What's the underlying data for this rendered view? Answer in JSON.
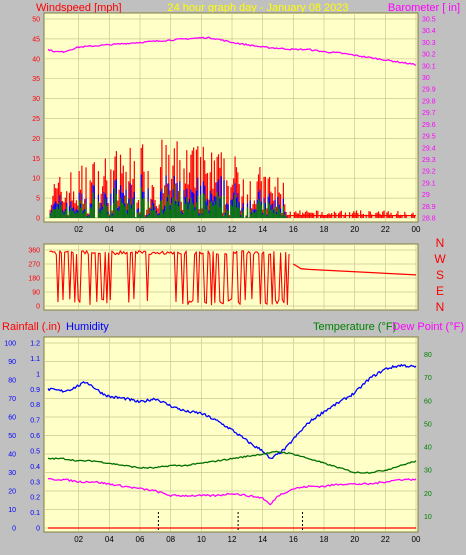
{
  "colors": {
    "background": "#c0c0c0",
    "plot": "#ffffc8",
    "grid": "#c8c890",
    "wind_speed": "#ff0000",
    "wind_gust": "#0000ff",
    "wind_avg": "#008000",
    "barometer": "#ff00ff",
    "direction": "#ff0000",
    "humidity": "#0000ff",
    "temperature": "#007000",
    "dewpoint": "#ff00ff",
    "rainfall": "#ff0000",
    "rain_marks": "#000000",
    "axis_red": "#ff0000",
    "axis_green": "#008000",
    "axis_blue": "#0000ff",
    "axis_magenta": "#ff00ff",
    "title": "#ffff00"
  },
  "header": {
    "windspeed_label": "Windspeed [mph]",
    "title": "24 hour graph day - January 08 2023",
    "barometer_label": "Barometer [ in]"
  },
  "panel_middle": {
    "compass": [
      "N",
      "W",
      "S",
      "E",
      "N"
    ]
  },
  "panel_bottom": {
    "rainfall_label": "Rainfall (.in)",
    "humidity_label": "Humidity",
    "temperature_label": "Temperature (°F)",
    "dewpoint_label": "Dew Point (°F)"
  },
  "chart_data": [
    {
      "type": "line",
      "name": "wind-barometer",
      "x_ticks": [
        "02",
        "04",
        "06",
        "08",
        "10",
        "12",
        "14",
        "16",
        "18",
        "20",
        "22",
        "00"
      ],
      "x_unit": "hour",
      "xlim": [
        0,
        24
      ],
      "y_left": {
        "label": "Windspeed [mph]",
        "ticks": [
          0,
          5,
          10,
          15,
          20,
          25,
          30,
          35,
          40,
          45,
          50
        ],
        "ylim": [
          0,
          50
        ]
      },
      "y_right": {
        "label": "Barometer [ in]",
        "ticks": [
          28.8,
          28.9,
          29.0,
          29.1,
          29.2,
          29.3,
          29.4,
          29.5,
          29.6,
          29.7,
          29.8,
          29.9,
          30.0,
          30.1,
          30.2,
          30.3,
          30.4,
          30.5
        ],
        "ylim": [
          28.8,
          30.5
        ]
      },
      "series": [
        {
          "name": "Barometer [ in]",
          "axis": "right",
          "x": [
            0,
            0.5,
            1,
            1.5,
            2,
            3,
            4,
            5,
            6,
            7,
            8,
            9,
            10,
            10.5,
            11,
            12,
            13,
            14,
            15,
            16,
            17,
            18,
            19,
            20,
            21,
            22,
            23,
            24
          ],
          "y": [
            30.24,
            30.22,
            30.22,
            30.24,
            30.26,
            30.27,
            30.28,
            30.29,
            30.3,
            30.31,
            30.32,
            30.33,
            30.34,
            30.34,
            30.33,
            30.3,
            30.28,
            30.26,
            30.25,
            30.24,
            30.24,
            30.22,
            30.21,
            30.19,
            30.17,
            30.15,
            30.13,
            30.11
          ]
        }
      ]
    },
    {
      "type": "line",
      "name": "wind-direction",
      "xlim": [
        0,
        24
      ],
      "y_left": {
        "ticks": [
          0,
          90,
          180,
          270,
          360
        ],
        "ylim": [
          0,
          360
        ]
      },
      "y_right": {
        "ticks": [
          "N",
          "W",
          "S",
          "E",
          "N"
        ]
      },
      "series": [
        {
          "name": "Direction",
          "x": [
            16,
            16.5,
            17,
            24
          ],
          "y": [
            270,
            240,
            235,
            200
          ]
        }
      ]
    },
    {
      "type": "line",
      "name": "rain-humidity-temperature",
      "x_ticks": [
        "02",
        "04",
        "06",
        "08",
        "10",
        "12",
        "14",
        "16",
        "18",
        "20",
        "22",
        "00"
      ],
      "xlim": [
        0,
        24
      ],
      "y_humidity": {
        "label": "Humidity",
        "ticks": [
          0,
          10,
          20,
          30,
          40,
          50,
          60,
          70,
          80,
          90,
          100
        ],
        "ylim": [
          0,
          100
        ]
      },
      "y_rainfall": {
        "label": "Rainfall (.in)",
        "ticks": [
          0,
          0.1,
          0.2,
          0.3,
          0.4,
          0.5,
          0.6,
          0.7,
          0.8,
          0.9,
          1,
          1.1,
          1.2
        ],
        "ylim": [
          0,
          1.2
        ]
      },
      "y_right": {
        "label": "Temperature (°F)",
        "ticks": [
          10,
          20,
          30,
          40,
          50,
          60,
          70,
          80
        ],
        "ylim": [
          5,
          85
        ]
      },
      "series": [
        {
          "name": "Humidity",
          "axis": "humidity",
          "x": [
            0,
            1,
            1.5,
            2,
            2.5,
            3,
            3.5,
            4,
            5,
            6,
            7,
            8,
            9,
            10,
            11,
            12,
            12.5,
            13,
            13.5,
            14,
            14.5,
            15,
            15.5,
            16,
            17,
            18,
            19,
            20,
            21,
            22,
            23,
            24
          ],
          "y": [
            75,
            74,
            75,
            77,
            79,
            76,
            73,
            71,
            70,
            68,
            70,
            66,
            63,
            62,
            58,
            53,
            50,
            47,
            44,
            42,
            37,
            40,
            43,
            48,
            57,
            63,
            68,
            73,
            81,
            86,
            88,
            87
          ]
        },
        {
          "name": "Temperature (°F)",
          "axis": "right",
          "x": [
            0,
            1,
            2,
            3,
            4,
            5,
            6,
            7,
            8,
            9,
            10,
            11,
            12,
            13,
            14,
            15,
            16,
            17,
            18,
            19,
            20,
            21,
            22,
            23,
            24
          ],
          "y": [
            35,
            35,
            34,
            34,
            33,
            32,
            31,
            31,
            32,
            32,
            33,
            34,
            35,
            36,
            37,
            38,
            37,
            35,
            33,
            31,
            29,
            29,
            30,
            32,
            34
          ]
        },
        {
          "name": "Dew Point (°F)",
          "axis": "right",
          "x": [
            0,
            1,
            2,
            3,
            4,
            5,
            6,
            7,
            8,
            9,
            10,
            11,
            12,
            13,
            14,
            14.5,
            15,
            16,
            17,
            18,
            19,
            20,
            21,
            22,
            23,
            24
          ],
          "y": [
            26,
            26,
            25,
            25,
            24,
            23,
            22,
            21,
            19,
            19,
            19,
            19,
            20,
            19,
            18,
            15,
            19,
            22,
            23,
            23,
            24,
            24,
            24,
            25,
            26,
            26
          ]
        },
        {
          "name": "Rainfall (.in)",
          "axis": "rainfall",
          "x": [
            0,
            24
          ],
          "y": [
            0,
            0
          ]
        }
      ]
    }
  ]
}
